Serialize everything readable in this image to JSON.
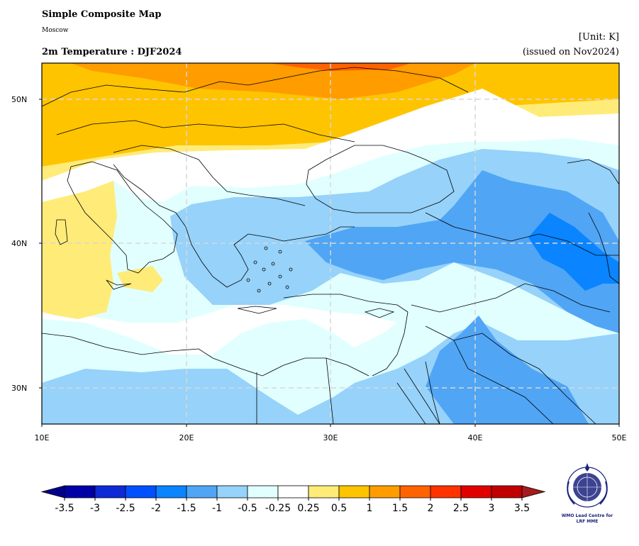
{
  "header": {
    "title": "Simple Composite Map",
    "subtitle": "Moscow",
    "variable_title": "2m Temperature : DJF2024",
    "unit": "[Unit: K]",
    "issued": "(issued on Nov2024)"
  },
  "axes": {
    "lat_labels": [
      "50N",
      "40N",
      "30N"
    ],
    "lon_labels": [
      "10E",
      "20E",
      "30E",
      "40E",
      "50E"
    ]
  },
  "colorbar": {
    "ticks": [
      "-3.5",
      "-3",
      "-2.5",
      "-2",
      "-1.5",
      "-1",
      "-0.5",
      "-0.25",
      "0.25",
      "0.5",
      "1",
      "1.5",
      "2",
      "2.5",
      "3",
      "3.5"
    ],
    "colors": [
      "#0000a6",
      "#0d2ad6",
      "#0050ff",
      "#0a84ff",
      "#50a5f5",
      "#96d2fa",
      "#e1ffff",
      "#ffffff",
      "#ffeb78",
      "#ffc400",
      "#ff9c00",
      "#ff6300",
      "#ff3200",
      "#e10000",
      "#c00000"
    ],
    "low_extend_color": "#00008a",
    "high_extend_color": "#a51c1c"
  },
  "logo": {
    "line1": "WMO Lead Centre for",
    "line2": "LRF MME"
  }
}
